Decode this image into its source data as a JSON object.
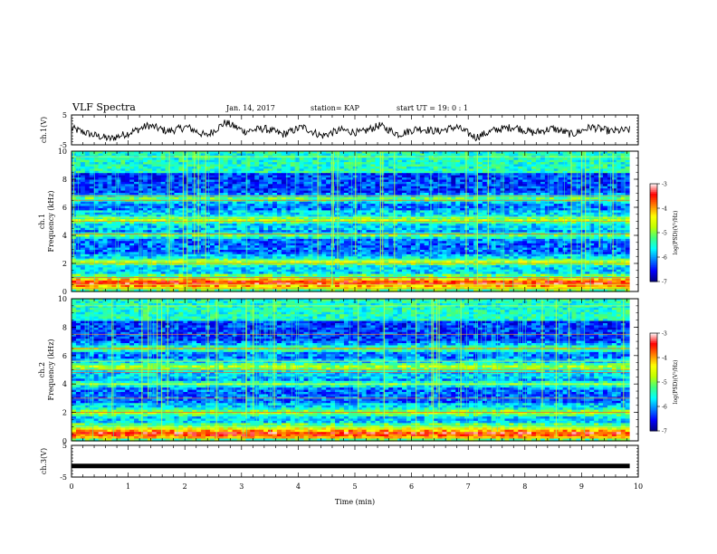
{
  "header": {
    "title": "VLF Spectra",
    "date": "Jan. 14, 2017",
    "station": "station= KAP",
    "start": "start  UT =   19: 0   : 1"
  },
  "chart_data": [
    {
      "type": "line",
      "name": "ch1-waveform",
      "ylabel": "ch.1(V)",
      "ylim": [
        -5,
        5
      ],
      "yticks": [
        "5",
        "-5"
      ],
      "x_range": [
        0,
        9.85
      ],
      "description_series": "noisy waveform oscillating roughly between -3 and 3 V",
      "values_approx": [
        0.5,
        -1.5,
        -3.0,
        -1.0,
        1.5,
        -0.5,
        1.0,
        -2.0,
        2.5,
        -0.5,
        0.5,
        -1.5,
        1.0,
        -2.0,
        0.0,
        -1.0,
        1.5,
        -1.5,
        0.5,
        -0.5,
        1.0,
        -2.5,
        0.0,
        1.0,
        -1.0,
        0.5,
        -1.5,
        1.0,
        -0.5,
        0.0
      ]
    },
    {
      "type": "heatmap",
      "name": "ch1-spectrogram",
      "ylabel": "ch.1\nFrequency (kHz)",
      "ylim": [
        0,
        10
      ],
      "yticks": [
        "0",
        "2",
        "4",
        "6",
        "8",
        "10"
      ],
      "x_range": [
        0,
        9.85
      ],
      "colorbar": {
        "label": "log(PSD)(V²/Hz)",
        "range": [
          -7,
          -3
        ],
        "ticks": [
          "-3",
          "-4",
          "-5",
          "-6",
          "-7"
        ]
      },
      "bands_khz": [
        0.6,
        2.1,
        4.0,
        5.1,
        6.6
      ],
      "bright_lines_khz": [
        0.2,
        0.5,
        1.0,
        2.0,
        2.2,
        4.1,
        5.0,
        5.3,
        6.5,
        6.8,
        9.6
      ]
    },
    {
      "type": "heatmap",
      "name": "ch2-spectrogram",
      "ylabel": "ch.2\nFrequency (kHz)",
      "ylim": [
        0,
        10
      ],
      "yticks": [
        "0",
        "2",
        "4",
        "6",
        "8",
        "10"
      ],
      "x_range": [
        0,
        9.85
      ],
      "colorbar": {
        "label": "log(PSD)(V²/Hz)",
        "range": [
          -7,
          -3
        ],
        "ticks": [
          "-3",
          "-4",
          "-5",
          "-6",
          "-7"
        ]
      },
      "bands_khz": [
        0.5,
        2.0,
        4.0,
        5.2,
        6.5
      ],
      "bright_lines_khz": [
        0.2,
        1.0,
        2.0,
        3.0,
        4.0,
        4.8,
        5.0,
        5.6,
        6.5,
        7.5,
        9.5
      ]
    },
    {
      "type": "line",
      "name": "ch3-waveform",
      "ylabel": "ch.3(V)",
      "ylim": [
        -5,
        5
      ],
      "yticks": [
        "5",
        "-5"
      ],
      "x_range": [
        0,
        9.85
      ],
      "values_approx": [
        -1.5,
        -1.5
      ]
    }
  ],
  "x_axis": {
    "label": "Time (min)",
    "ticks": [
      "0",
      "1",
      "2",
      "3",
      "4",
      "5",
      "6",
      "7",
      "8",
      "9",
      "10"
    ],
    "xlim": [
      0,
      10
    ]
  },
  "colors": {
    "cmap": [
      "#00007f",
      "#0000ff",
      "#0080ff",
      "#00ffff",
      "#00ff80",
      "#80ff00",
      "#ffff00",
      "#ff8000",
      "#ff0000",
      "#ffffff"
    ]
  }
}
